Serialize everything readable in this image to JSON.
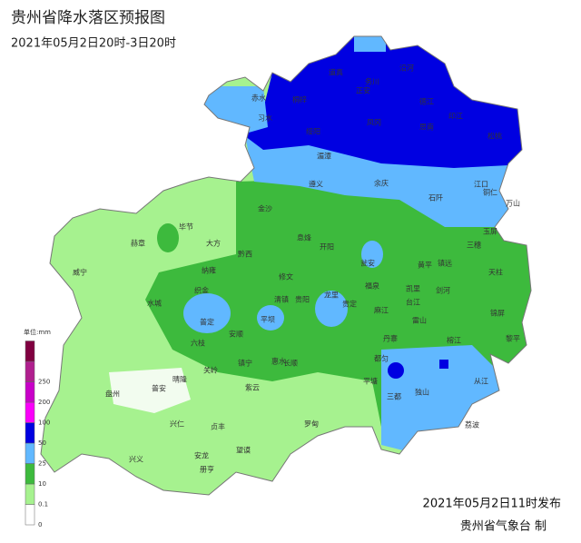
{
  "header": {
    "title": "贵州省降水落区预报图",
    "subtitle": "2021年05月2日20时-3日20时"
  },
  "legend": {
    "unit": "单位:mm",
    "levels": [
      "0",
      "0.1",
      "10",
      "25",
      "50",
      "100",
      "200",
      "250"
    ],
    "colors": [
      "#ffffff",
      "#a6f28f",
      "#3dba3d",
      "#61b8ff",
      "#0000e1",
      "#fa00fa",
      "#c800c8",
      "#b01f8e",
      "#800040"
    ]
  },
  "cities": [
    "赤水",
    "习水",
    "道真",
    "务川",
    "沿河",
    "正安",
    "桐梓",
    "绥阳",
    "凤冈",
    "德江",
    "思南",
    "印江",
    "松桃",
    "湄潭",
    "遵义",
    "余庆",
    "石阡",
    "江口",
    "铜仁",
    "万山",
    "毕节",
    "大方",
    "黔西",
    "金沙",
    "赫章",
    "威宁",
    "纳雍",
    "织金",
    "清镇",
    "修文",
    "息烽",
    "开阳",
    "瓮安",
    "黄平",
    "镇远",
    "玉屏",
    "三穗",
    "天柱",
    "锦屏",
    "黎平",
    "剑河",
    "台江",
    "雷山",
    "榕江",
    "从江",
    "凯里",
    "麻江",
    "丹寨",
    "都匀",
    "福泉",
    "贵定",
    "龙里",
    "贵阳",
    "平坝",
    "安顺",
    "普定",
    "六枝",
    "水城",
    "盘州",
    "普安",
    "晴隆",
    "关岭",
    "镇宁",
    "紫云",
    "长顺",
    "惠水",
    "平塘",
    "罗甸",
    "独山",
    "三都",
    "荔波",
    "兴仁",
    "贞丰",
    "安龙",
    "册亨",
    "望谟",
    "兴义"
  ],
  "footer": {
    "issued": "2021年05月2日11时发布",
    "agency": "贵州省气象台 制"
  }
}
